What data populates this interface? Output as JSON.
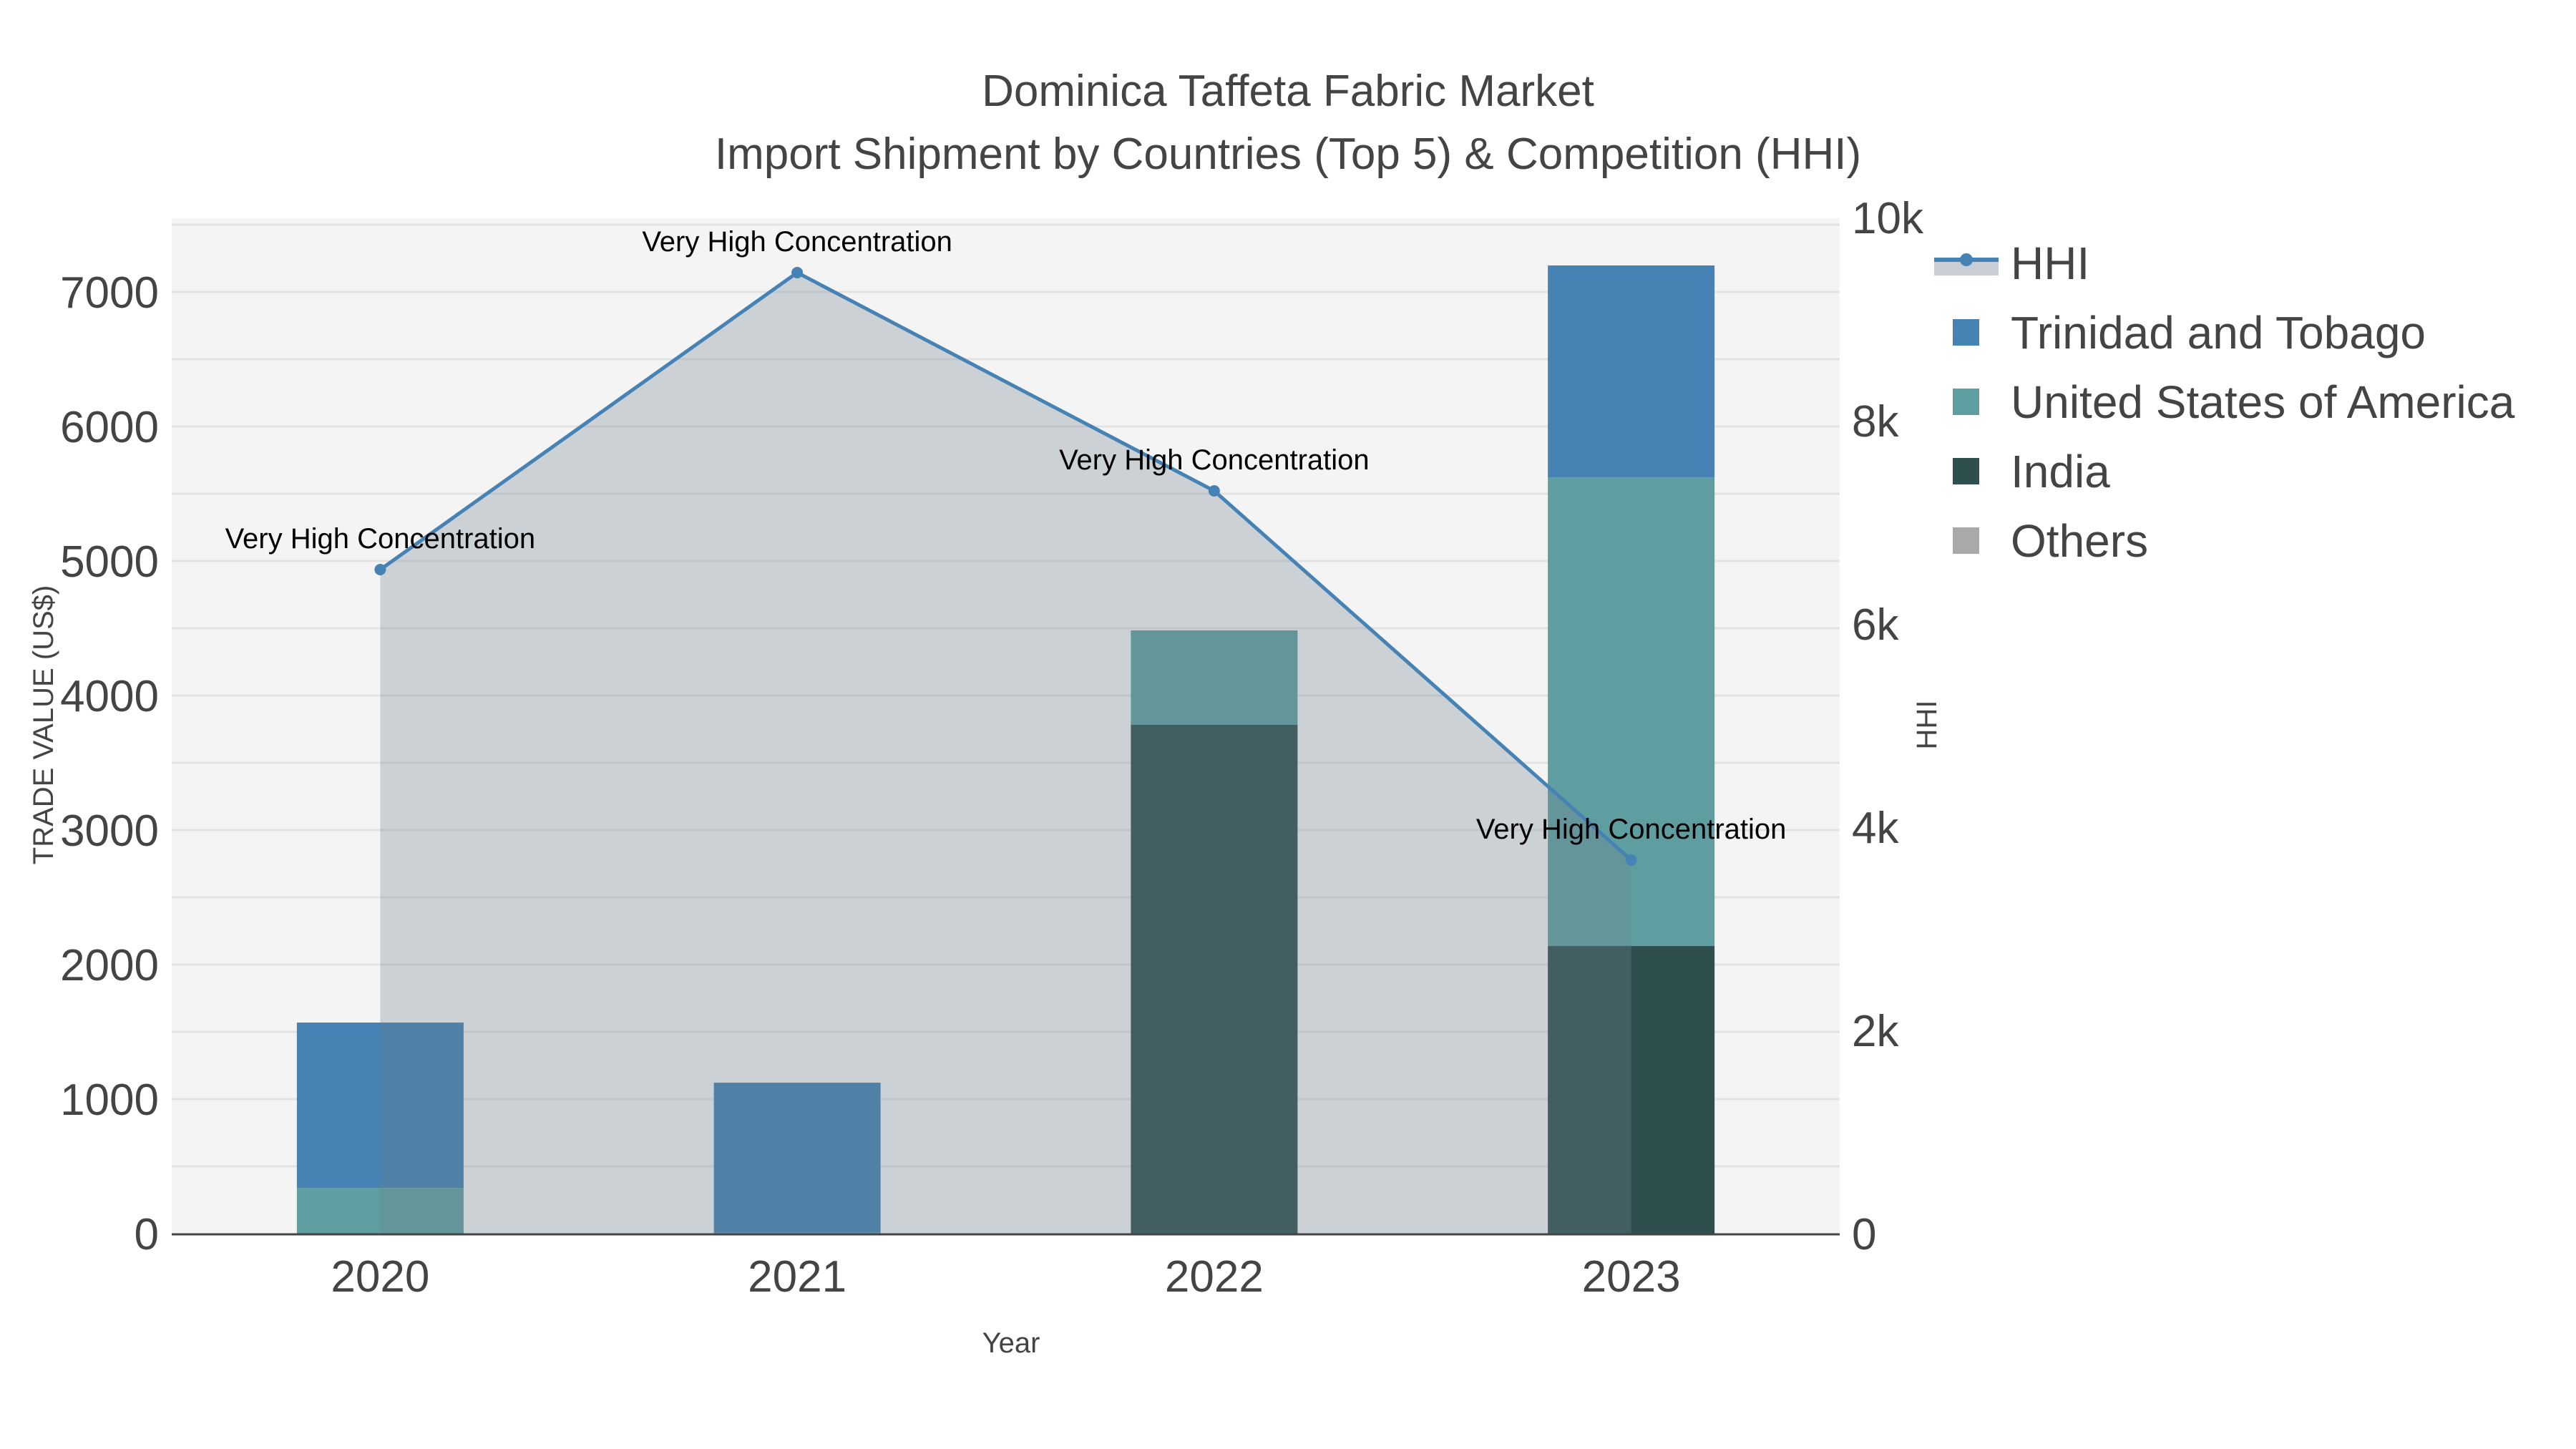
{
  "title": {
    "line1": "Dominica Taffeta Fabric Market",
    "line2": "Import Shipment by Countries (Top 5) & Competition (HHI)"
  },
  "axes": {
    "x_title": "Year",
    "y_title": "TRADE VALUE (US$)",
    "y2_title": "HHI",
    "y_ticks": [
      "0",
      "1000",
      "2000",
      "3000",
      "4000",
      "5000",
      "6000",
      "7000"
    ],
    "y2_ticks": [
      "0",
      "2k",
      "4k",
      "6k",
      "8k",
      "10k"
    ],
    "x_ticks": [
      "2020",
      "2021",
      "2022",
      "2023"
    ]
  },
  "legend": {
    "items": [
      {
        "label": "HHI",
        "type": "line-area",
        "color": "#4682B4",
        "fill": "#C8CDD6"
      },
      {
        "label": "Trinidad and Tobago",
        "type": "bar",
        "color": "#4682B4"
      },
      {
        "label": "United States of America",
        "type": "bar",
        "color": "#5F9EA0"
      },
      {
        "label": "India",
        "type": "bar",
        "color": "#2F4F4F"
      },
      {
        "label": "Others",
        "type": "bar",
        "color": "#A9A9A9"
      }
    ]
  },
  "annotations": [
    {
      "year": "2020",
      "text": "Very High Concentration"
    },
    {
      "year": "2021",
      "text": "Very High Concentration"
    },
    {
      "year": "2022",
      "text": "Very High Concentration"
    },
    {
      "year": "2023",
      "text": "Very High Concentration"
    }
  ],
  "colors": {
    "plot_bg": "#F4F4F4",
    "grid": "#E3E3E3",
    "axis_line": "#444444",
    "hhi_fill": "#C8CDD6",
    "hhi_line": "#4682B4"
  },
  "chart_data": {
    "type": "bar",
    "barmode": "stack",
    "title": "Dominica Taffeta Fabric Market — Import Shipment by Countries (Top 5) & Competition (HHI)",
    "xlabel": "Year",
    "ylabel": "TRADE VALUE (US$)",
    "y2label": "HHI",
    "categories": [
      "2020",
      "2021",
      "2022",
      "2023"
    ],
    "ylim": [
      0,
      7500
    ],
    "y2lim": [
      0,
      10000
    ],
    "grid": true,
    "legend_position": "right",
    "series": [
      {
        "name": "India",
        "color": "#2F4F4F",
        "values": [
          0,
          0,
          3782,
          2138
        ]
      },
      {
        "name": "United States of America",
        "color": "#5F9EA0",
        "values": [
          340,
          7,
          702,
          3484
        ]
      },
      {
        "name": "Trinidad and Tobago",
        "color": "#4682B4",
        "values": [
          1229,
          1115,
          0,
          1575
        ]
      },
      {
        "name": "Others",
        "color": "#A9A9A9",
        "values": [
          0,
          0,
          0,
          0
        ]
      }
    ],
    "line_series": {
      "name": "HHI",
      "axis": "y2",
      "type": "line+area",
      "values": [
        6535,
        9458,
        7310,
        3676
      ],
      "labels": [
        "Very High Concentration",
        "Very High Concentration",
        "Very High Concentration",
        "Very High Concentration"
      ]
    }
  }
}
